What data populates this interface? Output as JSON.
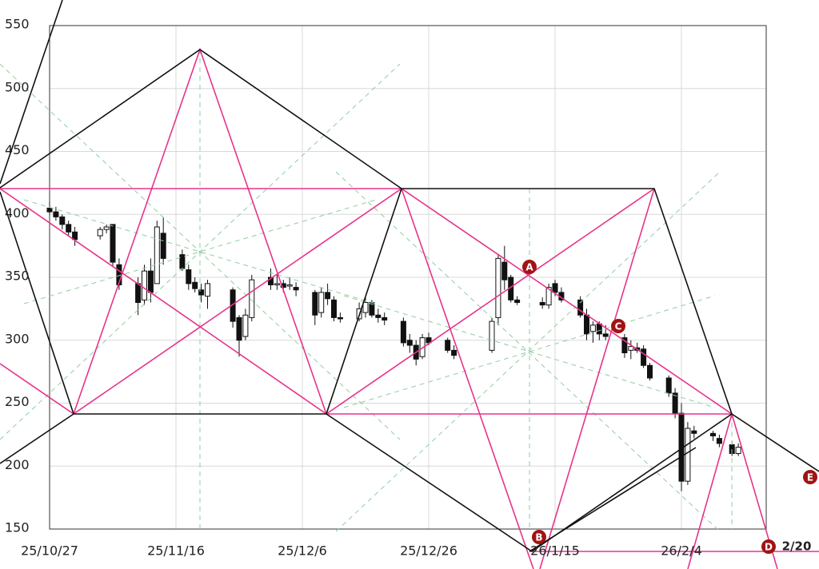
{
  "chart_data": {
    "type": "candlestick",
    "x": [
      "25/10/27",
      "25/10/28",
      "25/10/29",
      "25/10/30",
      "25/10/31",
      "25/11/4",
      "25/11/5",
      "25/11/6",
      "25/11/7",
      "25/11/10",
      "25/11/11",
      "25/11/12",
      "25/11/13",
      "25/11/14",
      "25/11/17",
      "25/11/18",
      "25/11/19",
      "25/11/20",
      "25/11/21",
      "25/11/25",
      "25/11/26",
      "25/11/27",
      "25/11/28",
      "25/12/1",
      "25/12/2",
      "25/12/3",
      "25/12/4",
      "25/12/5",
      "25/12/8",
      "25/12/9",
      "25/12/10",
      "25/12/11",
      "25/12/12",
      "25/12/15",
      "25/12/16",
      "25/12/17",
      "25/12/18",
      "25/12/19",
      "25/12/22",
      "25/12/23",
      "25/12/24",
      "25/12/25",
      "25/12/26",
      "25/12/29",
      "25/12/30",
      "26/1/5",
      "26/1/6",
      "26/1/7",
      "26/1/8",
      "26/1/9",
      "26/1/13",
      "26/1/14",
      "26/1/15",
      "26/1/16",
      "26/1/19",
      "26/1/20",
      "26/1/21",
      "26/1/22",
      "26/1/23",
      "26/1/26",
      "26/1/27",
      "26/1/28",
      "26/1/29",
      "26/1/30",
      "26/2/2",
      "26/2/3",
      "26/2/4",
      "26/2/5",
      "26/2/6",
      "26/2/9",
      "26/2/10",
      "26/2/12",
      "26/2/13"
    ],
    "open": [
      405,
      402,
      398,
      392,
      386,
      383,
      388,
      392,
      360,
      345,
      332,
      355,
      345,
      385,
      368,
      356,
      346,
      340,
      335,
      340,
      318,
      303,
      318,
      350,
      344,
      345,
      343,
      342,
      338,
      322,
      338,
      332,
      318,
      317,
      322,
      330,
      320,
      318,
      315,
      300,
      296,
      287,
      302,
      300,
      292,
      292,
      318,
      362,
      350,
      332,
      330,
      328,
      345,
      338,
      332,
      320,
      307,
      313,
      305,
      302,
      292,
      294,
      293,
      280,
      270,
      258,
      242,
      188,
      228,
      226,
      222,
      217,
      210
    ],
    "high": [
      410,
      406,
      400,
      395,
      390,
      390,
      392,
      392,
      365,
      350,
      360,
      365,
      395,
      398,
      372,
      360,
      350,
      345,
      348,
      342,
      320,
      325,
      352,
      357,
      352,
      348,
      350,
      346,
      340,
      342,
      345,
      335,
      322,
      330,
      335,
      332,
      325,
      322,
      318,
      305,
      300,
      305,
      306,
      302,
      296,
      318,
      368,
      375,
      352,
      335,
      334,
      345,
      348,
      342,
      335,
      325,
      315,
      315,
      312,
      305,
      300,
      298,
      296,
      282,
      272,
      262,
      250,
      235,
      232,
      228,
      225,
      220,
      218
    ],
    "low": [
      400,
      395,
      388,
      383,
      375,
      380,
      385,
      358,
      340,
      320,
      328,
      330,
      345,
      360,
      355,
      340,
      338,
      330,
      325,
      310,
      287,
      300,
      315,
      340,
      340,
      338,
      340,
      335,
      312,
      318,
      328,
      315,
      314,
      315,
      318,
      318,
      314,
      312,
      295,
      290,
      280,
      285,
      296,
      290,
      285,
      290,
      312,
      340,
      330,
      328,
      325,
      325,
      335,
      330,
      318,
      300,
      298,
      300,
      300,
      286,
      285,
      290,
      278,
      268,
      255,
      238,
      180,
      185,
      222,
      220,
      215,
      208,
      208
    ],
    "close": [
      402,
      398,
      392,
      386,
      380,
      388,
      390,
      362,
      344,
      330,
      355,
      338,
      390,
      365,
      357,
      345,
      341,
      336,
      345,
      315,
      300,
      320,
      348,
      344,
      345,
      342,
      344,
      340,
      320,
      338,
      333,
      318,
      317,
      325,
      330,
      320,
      318,
      316,
      298,
      296,
      285,
      302,
      298,
      292,
      288,
      315,
      365,
      348,
      332,
      330,
      328,
      342,
      338,
      332,
      320,
      305,
      312,
      305,
      303,
      290,
      295,
      292,
      280,
      270,
      258,
      242,
      188,
      230,
      226,
      224,
      218,
      210,
      215
    ],
    "ylim": [
      150,
      550
    ],
    "yticks": [
      150,
      200,
      250,
      300,
      350,
      400,
      450,
      500,
      550
    ],
    "xticks": [
      "25/10/27",
      "25/11/16",
      "25/12/6",
      "25/12/26",
      "26/1/15",
      "26/2/4"
    ],
    "grid": true,
    "annotations": [
      "A",
      "B",
      "C",
      "D",
      "E",
      "2/20"
    ]
  }
}
